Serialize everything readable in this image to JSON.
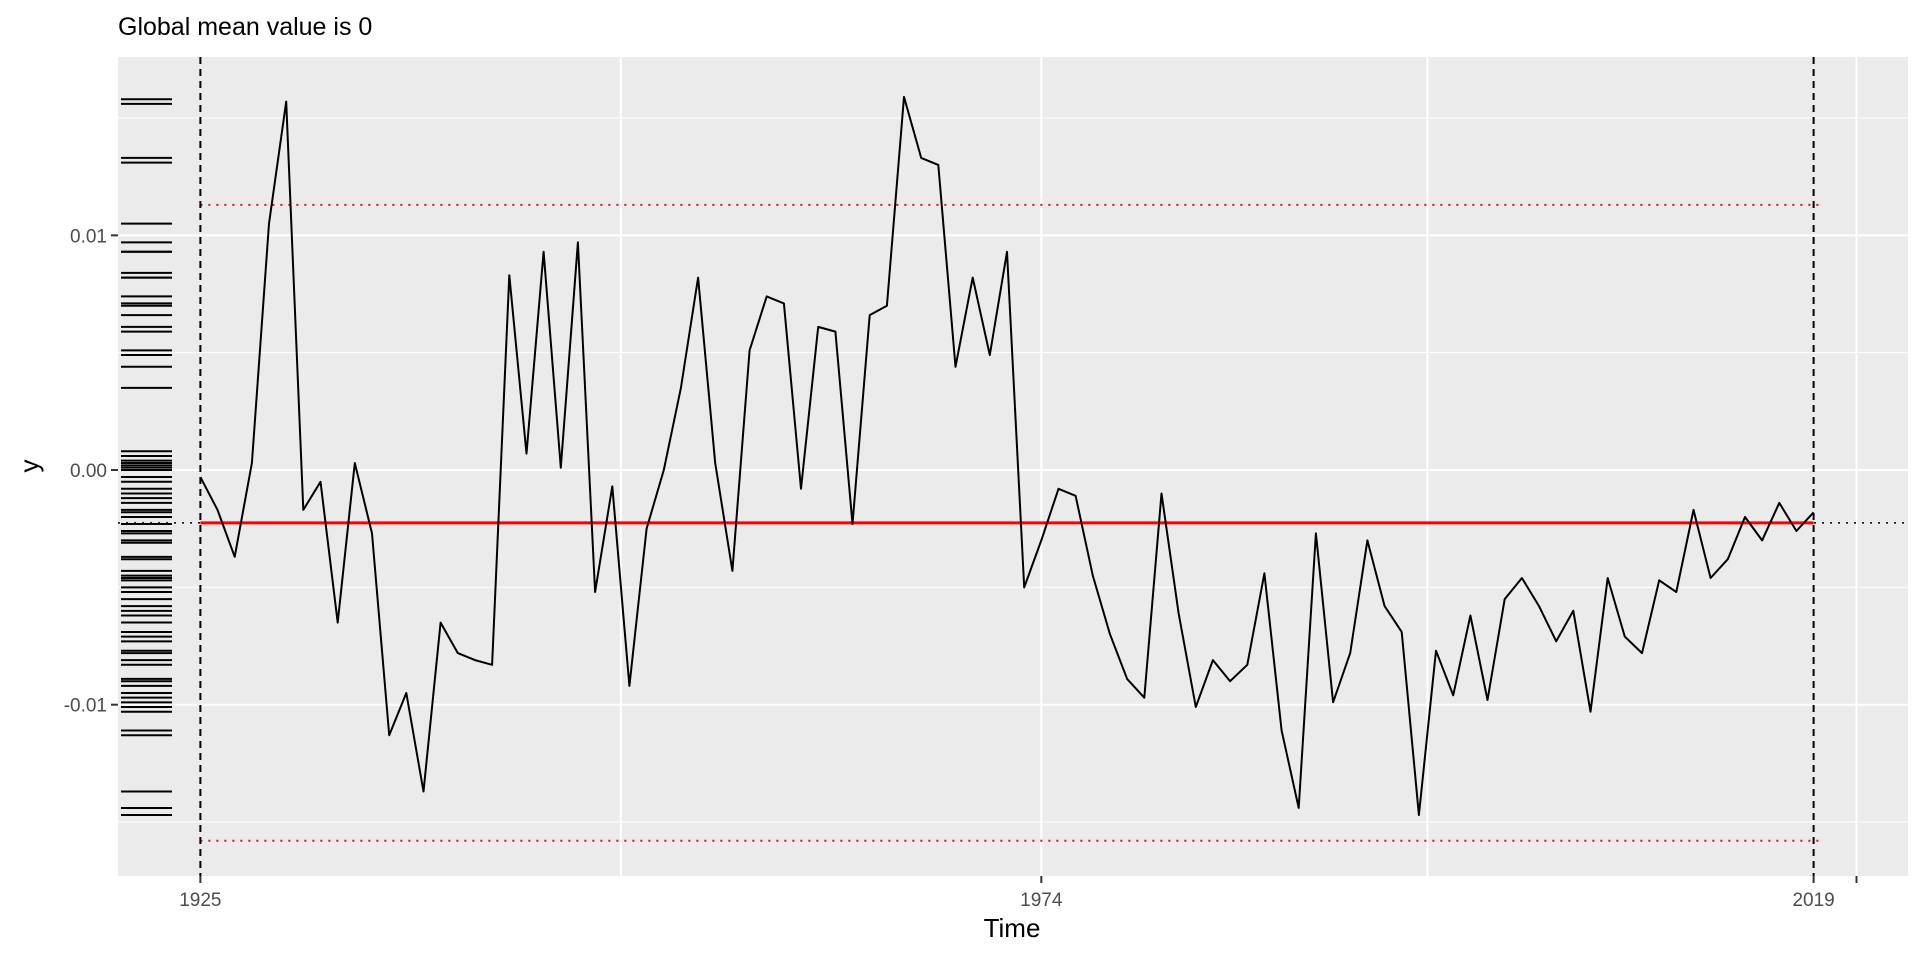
{
  "chart_data": {
    "type": "line",
    "title": "Global mean value is 0",
    "xlabel": "Time",
    "ylabel": "y",
    "xlim": [
      1920.2,
      2024.5
    ],
    "ylim": [
      -0.0173,
      0.0176
    ],
    "x_ticks": [
      {
        "value": 1925,
        "label": "1925"
      },
      {
        "value": 1974,
        "label": "1974"
      },
      {
        "value": 2019,
        "label": "2019"
      }
    ],
    "y_ticks": [
      {
        "value": 0.01,
        "label": "0.01"
      },
      {
        "value": 0.0,
        "label": "0.00"
      },
      {
        "value": -0.01,
        "label": "-0.01"
      }
    ],
    "x_grid_major": [
      1949.5,
      1974,
      1996.5,
      2021.5
    ],
    "y_grid_minor": [
      0.005,
      -0.005,
      0.015,
      -0.015
    ],
    "mean": -0.00225,
    "upper_bound": 0.0113,
    "lower_bound": -0.0158,
    "vertical_markers": [
      1925,
      2019
    ],
    "grid": true,
    "legend": "none",
    "colors": {
      "panel_background": "#ebebeb",
      "grid": "#ffffff",
      "series": "#000000",
      "mean_line": "#ff0000",
      "bounds": "#ff0000",
      "markers": "#000000"
    },
    "series": [
      {
        "x": [
          1925,
          1926,
          1927,
          1928,
          1929,
          1930,
          1931,
          1932,
          1933,
          1934,
          1935,
          1936,
          1937,
          1938,
          1939,
          1940,
          1941,
          1942,
          1943,
          1944,
          1945,
          1946,
          1947,
          1948,
          1949,
          1950,
          1951,
          1952,
          1953,
          1954,
          1955,
          1956,
          1957,
          1958,
          1959,
          1960,
          1961,
          1962,
          1963,
          1964,
          1965,
          1966,
          1967,
          1968,
          1969,
          1970,
          1971,
          1972,
          1973,
          1974,
          1975,
          1976,
          1977,
          1978,
          1979,
          1980,
          1981,
          1982,
          1983,
          1984,
          1985,
          1986,
          1987,
          1988,
          1989,
          1990,
          1991,
          1992,
          1993,
          1994,
          1995,
          1996,
          1997,
          1998,
          1999,
          2000,
          2001,
          2002,
          2003,
          2004,
          2005,
          2006,
          2007,
          2008,
          2009,
          2010,
          2011,
          2012,
          2013,
          2014,
          2015,
          2016,
          2017,
          2018,
          2019
        ],
        "y": [
          -0.0003,
          -0.0017,
          -0.0037,
          0.0003,
          0.0105,
          0.0157,
          -0.0017,
          -0.0005,
          -0.0065,
          0.0003,
          -0.0027,
          -0.0113,
          -0.0095,
          -0.0137,
          -0.0065,
          -0.0078,
          -0.0081,
          -0.0083,
          0.0083,
          0.0007,
          0.0093,
          0.0001,
          0.0097,
          -0.0052,
          -0.0007,
          -0.0092,
          -0.0025,
          0.0,
          0.0035,
          0.0082,
          0.0003,
          -0.0043,
          0.0051,
          0.0074,
          0.0071,
          -0.0008,
          0.0061,
          0.0059,
          -0.0023,
          0.0066,
          0.007,
          0.0159,
          0.0133,
          0.013,
          0.0044,
          0.0082,
          0.0049,
          0.0093,
          -0.005,
          -0.003,
          -0.0008,
          -0.0011,
          -0.0045,
          -0.007,
          -0.0089,
          -0.0097,
          -0.001,
          -0.0061,
          -0.0101,
          -0.0081,
          -0.009,
          -0.0083,
          -0.0044,
          -0.0111,
          -0.0144,
          -0.0027,
          -0.0099,
          -0.0078,
          -0.003,
          -0.0058,
          -0.0069,
          -0.0147,
          -0.0077,
          -0.0096,
          -0.0062,
          -0.0098,
          -0.0055,
          -0.0046,
          -0.0058,
          -0.0073,
          -0.006,
          -0.0103,
          -0.0046,
          -0.0071,
          -0.0078,
          -0.0047,
          -0.0052,
          -0.0017,
          -0.0046,
          -0.0038,
          -0.002,
          -0.003,
          -0.0014,
          -0.0026,
          -0.0018
        ]
      }
    ],
    "rug_values": [
      0.0158,
      0.0156,
      0.0133,
      0.0131,
      0.0105,
      0.0097,
      0.0093,
      0.0093,
      0.0084,
      0.0082,
      0.0082,
      0.0074,
      0.0071,
      0.007,
      0.0066,
      0.0061,
      0.0059,
      0.0051,
      0.0049,
      0.0044,
      0.0035,
      0.0008,
      0.0006,
      0.0004,
      0.0003,
      0.0002,
      0.0001,
      0.0,
      -0.0003,
      -0.0005,
      -0.0008,
      -0.001,
      -0.0012,
      -0.0014,
      -0.0017,
      -0.0018,
      -0.002,
      -0.0023,
      -0.0026,
      -0.0027,
      -0.003,
      -0.0031,
      -0.0037,
      -0.0038,
      -0.0043,
      -0.0045,
      -0.0046,
      -0.0047,
      -0.005,
      -0.0052,
      -0.0055,
      -0.0058,
      -0.006,
      -0.0062,
      -0.0065,
      -0.0069,
      -0.0071,
      -0.0073,
      -0.0077,
      -0.0078,
      -0.0081,
      -0.0083,
      -0.0089,
      -0.009,
      -0.0092,
      -0.0095,
      -0.0097,
      -0.0099,
      -0.0101,
      -0.0103,
      -0.0111,
      -0.0113,
      -0.0137,
      -0.0144,
      -0.0147
    ]
  }
}
